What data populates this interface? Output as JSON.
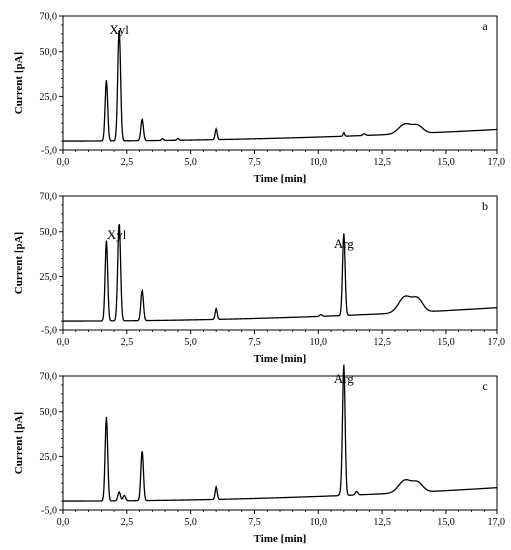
{
  "chart_data": [
    {
      "type": "line",
      "panel_label": "a",
      "xlabel": "Time [min]",
      "ylabel": "Current [pA]",
      "xlim": [
        0,
        17
      ],
      "ylim": [
        -5,
        70
      ],
      "xticks": [
        "0,0",
        "2,5",
        "5,0",
        "7,5",
        "10,0",
        "12,5",
        "15,0",
        "17,0"
      ],
      "yticks": [
        "70,0",
        "50,0",
        "25,0",
        "-5,0"
      ],
      "annotations": [
        {
          "text": "Xyl",
          "x": 2.2,
          "y": 60
        }
      ],
      "peaks": [
        {
          "x": 1.7,
          "height": 34,
          "width": 0.05
        },
        {
          "x": 2.2,
          "height": 63,
          "width": 0.055
        },
        {
          "x": 3.1,
          "height": 12,
          "width": 0.05
        },
        {
          "x": 3.9,
          "height": 1,
          "width": 0.04
        },
        {
          "x": 4.5,
          "height": 1,
          "width": 0.04
        },
        {
          "x": 6.0,
          "height": 6,
          "width": 0.04
        },
        {
          "x": 11.0,
          "height": 2,
          "width": 0.03
        },
        {
          "x": 11.8,
          "height": 1,
          "width": 0.05
        },
        {
          "x": 13.4,
          "height": 5.5,
          "width": 0.25
        },
        {
          "x": 13.9,
          "height": 4,
          "width": 0.2
        }
      ],
      "baseline": {
        "start": 0,
        "end": 6.5
      }
    },
    {
      "type": "line",
      "panel_label": "b",
      "xlabel": "Time [min]",
      "ylabel": "Current [pA]",
      "xlim": [
        0,
        17
      ],
      "ylim": [
        -5,
        70
      ],
      "xticks": [
        "0,0",
        "2,5",
        "5,0",
        "7,5",
        "10,0",
        "12,5",
        "15,0",
        "17,0"
      ],
      "yticks": [
        "70,0",
        "50,0",
        "25,0",
        "-5,0"
      ],
      "annotations": [
        {
          "text": "Xyl",
          "x": 2.1,
          "y": 46
        },
        {
          "text": "Arg",
          "x": 11.0,
          "y": 41
        }
      ],
      "peaks": [
        {
          "x": 1.7,
          "height": 45,
          "width": 0.05
        },
        {
          "x": 2.2,
          "height": 55,
          "width": 0.055
        },
        {
          "x": 3.1,
          "height": 17,
          "width": 0.05
        },
        {
          "x": 6.0,
          "height": 6,
          "width": 0.04
        },
        {
          "x": 10.1,
          "height": 1,
          "width": 0.05
        },
        {
          "x": 11.0,
          "height": 46,
          "width": 0.05
        },
        {
          "x": 13.4,
          "height": 9,
          "width": 0.25
        },
        {
          "x": 13.9,
          "height": 7,
          "width": 0.2
        }
      ],
      "baseline": {
        "start": 0,
        "end": 7.5
      }
    },
    {
      "type": "line",
      "panel_label": "c",
      "xlabel": "Time [min]",
      "ylabel": "Current [pA]",
      "xlim": [
        0,
        17
      ],
      "ylim": [
        -5,
        70
      ],
      "xticks": [
        "0,0",
        "2,5",
        "5,0",
        "7,5",
        "10,0",
        "12,5",
        "15,0",
        "17,0"
      ],
      "yticks": [
        "70,0",
        "50,0",
        "25,0",
        "-5,0"
      ],
      "annotations": [
        {
          "text": "Arg",
          "x": 11.0,
          "y": 66
        }
      ],
      "peaks": [
        {
          "x": 1.7,
          "height": 47,
          "width": 0.05
        },
        {
          "x": 2.2,
          "height": 5,
          "width": 0.05
        },
        {
          "x": 2.4,
          "height": 3,
          "width": 0.05
        },
        {
          "x": 3.1,
          "height": 28,
          "width": 0.05
        },
        {
          "x": 6.0,
          "height": 7,
          "width": 0.04
        },
        {
          "x": 10.9,
          "height": 2,
          "width": 0.05
        },
        {
          "x": 11.0,
          "height": 73,
          "width": 0.05
        },
        {
          "x": 11.5,
          "height": 2,
          "width": 0.05
        },
        {
          "x": 13.4,
          "height": 7,
          "width": 0.25
        },
        {
          "x": 13.9,
          "height": 5,
          "width": 0.2
        }
      ],
      "baseline": {
        "start": 0,
        "end": 7.5
      }
    }
  ]
}
